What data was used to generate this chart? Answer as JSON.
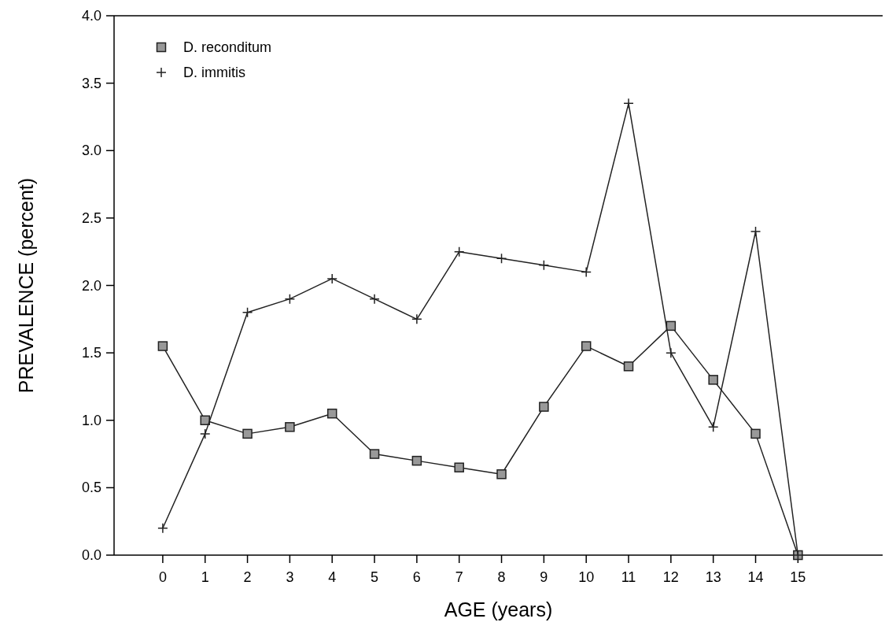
{
  "chart_data": {
    "type": "line",
    "xlabel": "AGE  (years)",
    "ylabel": "PREVALENCE  (percent)",
    "x": [
      0,
      1,
      2,
      3,
      4,
      5,
      6,
      7,
      8,
      9,
      10,
      11,
      12,
      13,
      14,
      15
    ],
    "series": [
      {
        "name": "D. reconditum",
        "color": "#222222",
        "marker": "square",
        "values": [
          1.55,
          1.0,
          0.9,
          0.95,
          1.05,
          0.75,
          0.7,
          0.65,
          0.6,
          1.1,
          1.55,
          1.4,
          1.7,
          1.3,
          0.9,
          0
        ]
      },
      {
        "name": "D. immitis",
        "color": "#222222",
        "marker": "cross",
        "values": [
          0.2,
          0.9,
          1.8,
          1.9,
          2.05,
          1.9,
          1.75,
          2.25,
          2.2,
          2.15,
          2.1,
          3.35,
          1.5,
          0.95,
          2.4,
          0
        ]
      }
    ],
    "xlim": [
      -1.15,
      17
    ],
    "ylim": [
      0,
      4
    ],
    "xticks": [
      0,
      1,
      2,
      3,
      4,
      5,
      6,
      7,
      8,
      9,
      10,
      11,
      12,
      13,
      14,
      15
    ],
    "yticks": [
      {
        "value": 0,
        "label": "0.0"
      },
      {
        "value": 0.5,
        "label": "0.5"
      },
      {
        "value": 1,
        "label": "1.0"
      },
      {
        "value": 1.5,
        "label": "1.5"
      },
      {
        "value": 2,
        "label": "2.0"
      },
      {
        "value": 2.5,
        "label": "2.5"
      },
      {
        "value": 3,
        "label": "3.0"
      },
      {
        "value": 3.5,
        "label": "3.5"
      },
      {
        "value": 4,
        "label": "4.0"
      }
    ],
    "grid": false,
    "legend": "top left",
    "line_style": "solid"
  }
}
